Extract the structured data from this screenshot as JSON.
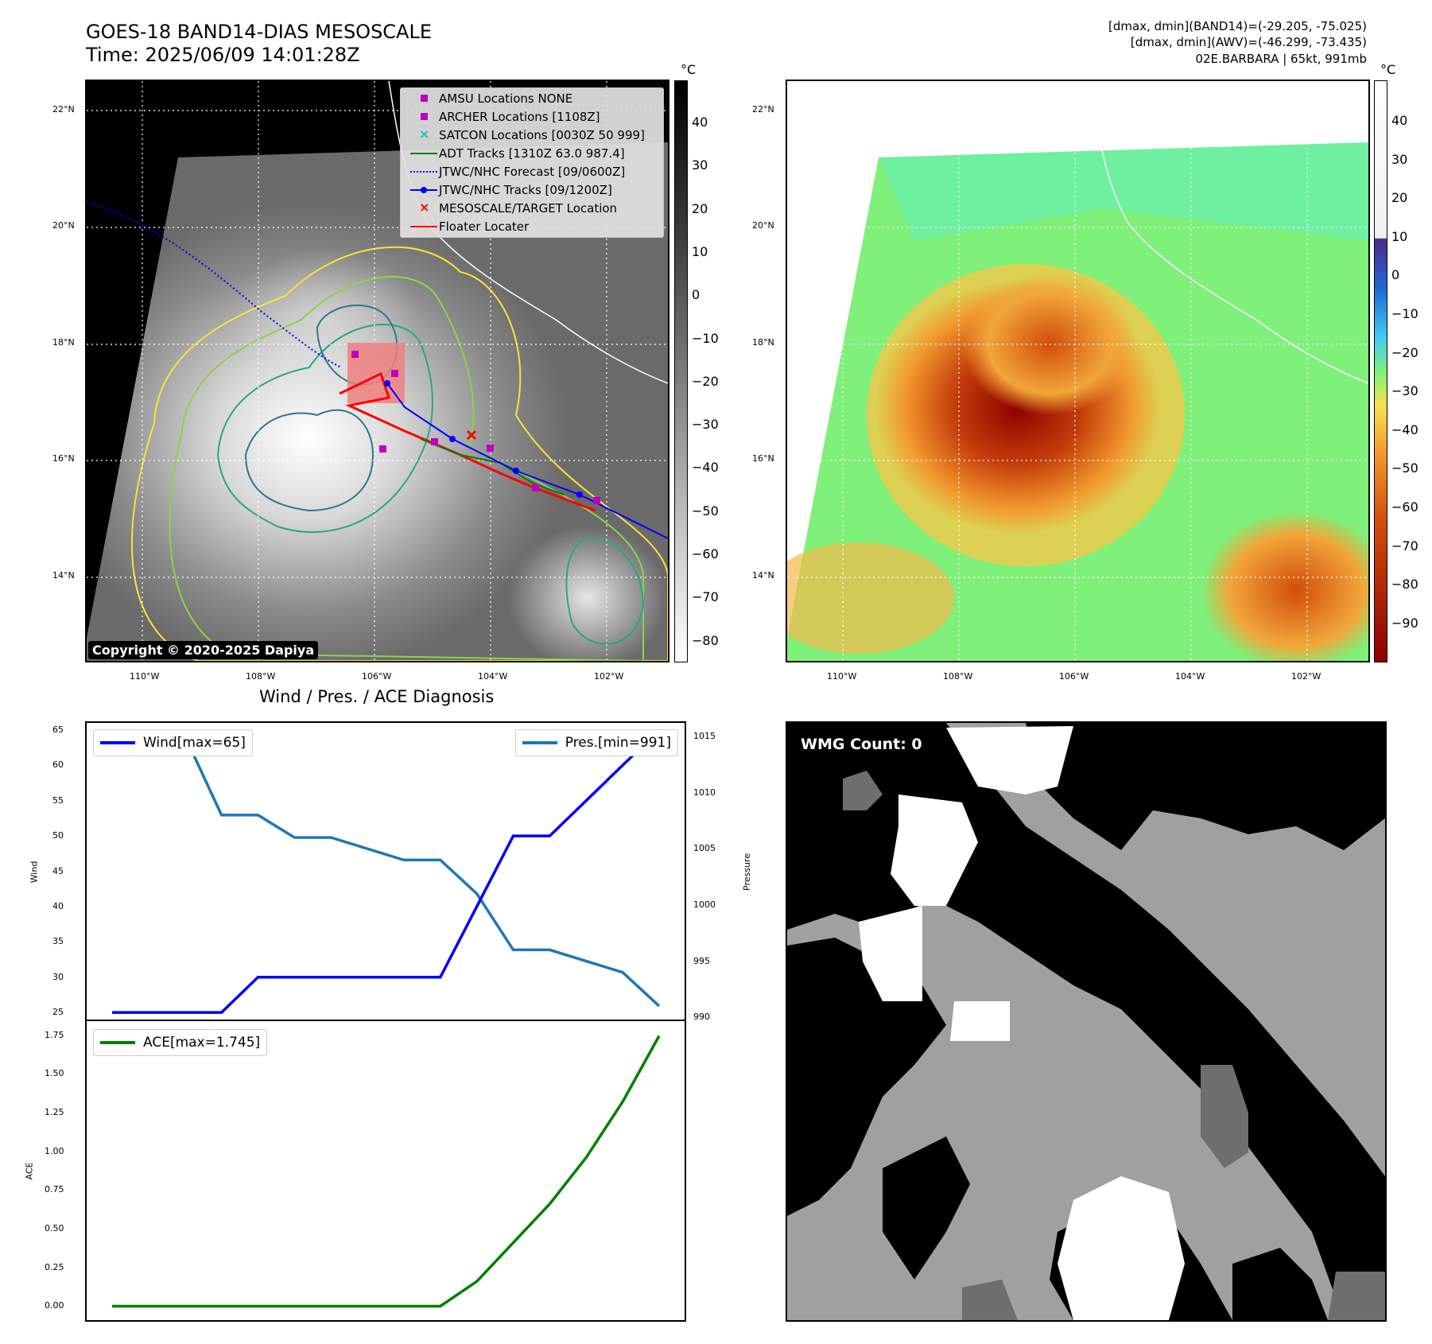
{
  "header": {
    "title_line1": "GOES-18 BAND14-DIAS MESOSCALE",
    "title_line2": "Time: 2025/06/09 14:01:28Z",
    "meta_line1": "[dmax, dmin](BAND14)=(-29.205, -75.025)",
    "meta_line2": "[dmax, dmin](AWV)=(-46.299, -73.435)",
    "meta_line3": "02E.BARBARA | 65kt, 991mb"
  },
  "map": {
    "lat_labels": [
      "22°N",
      "20°N",
      "18°N",
      "16°N",
      "14°N"
    ],
    "lon_labels": [
      "110°W",
      "108°W",
      "106°W",
      "104°W",
      "102°W"
    ],
    "copyright": "Copyright © 2020-2025 Dapiya",
    "legend": [
      {
        "label": "AMSU Locations NONE",
        "marker": "square",
        "color": "#bf00bf"
      },
      {
        "label": "ARCHER Locations [1108Z]",
        "marker": "square",
        "color": "#bf00bf"
      },
      {
        "label": "SATCON Locations [0030Z 50 999]",
        "marker": "x",
        "color": "#17becf"
      },
      {
        "label": "ADT Tracks [1310Z 63.0 987.4]",
        "marker": "line",
        "color": "#008000"
      },
      {
        "label": "JTWC/NHC Forecast [09/0600Z]",
        "marker": "dotted",
        "color": "#0000ff"
      },
      {
        "label": "JTWC/NHC Tracks [09/1200Z]",
        "marker": "dotline",
        "color": "#0000ff"
      },
      {
        "label": "MESOSCALE/TARGET Location",
        "marker": "x",
        "color": "#ff0000"
      },
      {
        "label": "Floater Locater",
        "marker": "line",
        "color": "#ff0000"
      }
    ]
  },
  "colorbar_left": {
    "unit": "°C",
    "ticks": [
      "40",
      "30",
      "20",
      "10",
      "0",
      "−10",
      "−20",
      "−30",
      "−40",
      "−50",
      "−60",
      "−70",
      "−80"
    ]
  },
  "colorbar_right": {
    "unit": "°C",
    "ticks": [
      "40",
      "30",
      "20",
      "10",
      "0",
      "−10",
      "−20",
      "−30",
      "−40",
      "−50",
      "−60",
      "−70",
      "−80",
      "−90"
    ]
  },
  "timeseries": {
    "title": "Wind / Pres. / ACE Diagnosis",
    "wind_ylabel": "Wind",
    "pres_ylabel": "Pressure",
    "ace_ylabel": "ACE",
    "wind_legend": "Wind[max=65]",
    "pres_legend": "Pres.[min=991]",
    "ace_legend": "ACE[max=1.745]",
    "wind_ticks": [
      "65",
      "60",
      "55",
      "50",
      "45",
      "40",
      "35",
      "30",
      "25"
    ],
    "pres_ticks": [
      "1015",
      "1010",
      "1005",
      "1000",
      "995",
      "990"
    ],
    "ace_ticks": [
      "1.75",
      "1.50",
      "1.25",
      "1.00",
      "0.75",
      "0.50",
      "0.25",
      "0.00"
    ]
  },
  "wmg": {
    "label": "WMG Count: 0"
  },
  "chart_data": [
    {
      "type": "line",
      "title": "Wind / Pres. / ACE Diagnosis",
      "ylabel": "Wind",
      "series": [
        {
          "name": "Wind[max=65]",
          "color": "#0000ff",
          "values": [
            25,
            25,
            25,
            25,
            30,
            30,
            30,
            30,
            30,
            30,
            40,
            50,
            50,
            55,
            60,
            65
          ]
        },
        {
          "name": "Pres.[min=991]",
          "color": "#1f77b4",
          "axis": "right",
          "values": [
            1015,
            1015,
            1015,
            1008,
            1008,
            1006,
            1006,
            1005,
            1004,
            1004,
            1001,
            996,
            996,
            995,
            994,
            991
          ]
        }
      ],
      "ylim": [
        24,
        66
      ],
      "ylim_right": [
        989.8,
        1016.2
      ]
    },
    {
      "type": "line",
      "ylabel": "ACE",
      "series": [
        {
          "name": "ACE[max=1.745]",
          "color": "#008000",
          "values": [
            0,
            0,
            0,
            0,
            0,
            0,
            0,
            0,
            0,
            0,
            0.16,
            0.41,
            0.66,
            0.96,
            1.32,
            1.745
          ]
        }
      ],
      "ylim": [
        -0.09,
        1.84
      ]
    }
  ]
}
